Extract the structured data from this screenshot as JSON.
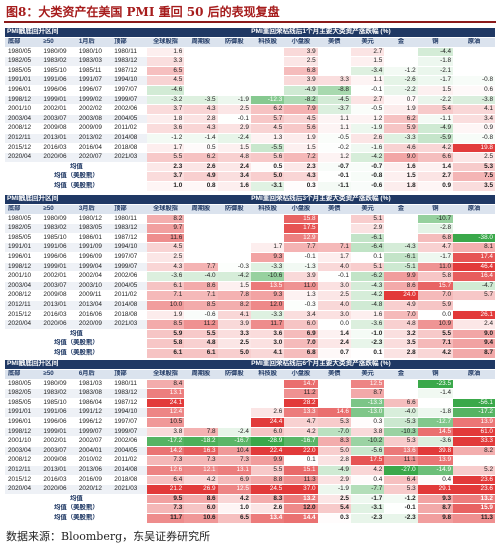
{
  "title": "图8：大类资产在美国 PMI 重回 50 后的表现复盘",
  "source": "数据来源：Bloomberg，东吴证券研究所",
  "columns": [
    "全球股指",
    "周期股",
    "防御股",
    "科技股",
    "小盘股",
    "美债",
    "美元",
    "金",
    "铜",
    "原油"
  ],
  "colors": {
    "pos": "#e23a3a",
    "neg": "#3aa84a",
    "header": "#1f3864"
  },
  "sections": [
    {
      "header_left": "PMI触底回升区间",
      "header_right": "PMI重回荣枯线后1个月主要大类资产涨跌幅 (%)",
      "sub": [
        "底部",
        "≥50",
        "1月后",
        "顶部"
      ],
      "rows": [
        {
          "d": [
            "1980/05",
            "1980/09",
            "1980/10",
            "1980/11"
          ],
          "v": [
            "1.6",
            "",
            "",
            "",
            "3.9",
            "",
            "2.7",
            "",
            "-4.4",
            ""
          ]
        },
        {
          "d": [
            "1982/05",
            "1983/02",
            "1983/03",
            "1983/12"
          ],
          "v": [
            "3.3",
            "",
            "",
            "",
            "2.5",
            "",
            "1.5",
            "",
            "-1.8",
            ""
          ]
        },
        {
          "d": [
            "1985/05",
            "1985/10",
            "1985/11",
            "1987/12"
          ],
          "v": [
            "6.5",
            "",
            "",
            "",
            "6.8",
            "",
            "-3.4",
            "-1.2",
            "-2.1",
            ""
          ]
        },
        {
          "d": [
            "1991/01",
            "1991/06",
            "1991/07",
            "1994/10"
          ],
          "v": [
            "4.5",
            "",
            "",
            "",
            "3.9",
            "3.3",
            "1.1",
            "-2.6",
            "-1.7",
            "-0.8"
          ]
        },
        {
          "d": [
            "1996/01",
            "1996/06",
            "1996/07",
            "1997/07"
          ],
          "v": [
            "-4.6",
            "",
            "",
            "",
            "-4.9",
            "-8.8",
            "-0.1",
            "-2.2",
            "1.5",
            "0.6"
          ]
        },
        {
          "d": [
            "1998/12",
            "1999/01",
            "1999/02",
            "1999/07"
          ],
          "v": [
            "-3.2",
            "-3.5",
            "-1.9",
            "-12.3",
            "-8.2",
            "-4.5",
            "2.7",
            "0.7",
            "-2.2",
            "-3.8"
          ]
        },
        {
          "d": [
            "2001/10",
            "2002/01",
            "2002/02",
            "2002/06"
          ],
          "v": [
            "3.7",
            "4.3",
            "2.5",
            "6.2",
            "7.9",
            "-3.7",
            "-0.5",
            "1.9",
            "5.4",
            "4.1"
          ]
        },
        {
          "d": [
            "2003/04",
            "2003/07",
            "2003/08",
            "2004/05"
          ],
          "v": [
            "1.8",
            "2.8",
            "-0.1",
            "5.7",
            "4.5",
            "1.1",
            "1.2",
            "6.2",
            "-1.1",
            "3.4"
          ]
        },
        {
          "d": [
            "2008/12",
            "2009/08",
            "2009/09",
            "2011/02"
          ],
          "v": [
            "3.6",
            "4.3",
            "2.9",
            "4.5",
            "5.6",
            "1.1",
            "-1.9",
            "5.9",
            "-4.9",
            "0.9"
          ]
        },
        {
          "d": [
            "2012/11",
            "2013/01",
            "2013/02",
            "2014/08"
          ],
          "v": [
            "-1.2",
            "-1.4",
            "-2.4",
            "1.3",
            "1.9",
            "-0.5",
            "2.6",
            "-3.3",
            "-5.9",
            "-0.8"
          ]
        },
        {
          "d": [
            "2015/12",
            "2016/03",
            "2016/04",
            "2018/08"
          ],
          "v": [
            "1.7",
            "0.5",
            "1.5",
            "-5.5",
            "1.5",
            "-0.2",
            "-1.6",
            "4.6",
            "4.2",
            "19.8"
          ]
        },
        {
          "d": [
            "2020/04",
            "2020/06",
            "2020/07",
            "2021/03"
          ],
          "v": [
            "5.5",
            "6.2",
            "4.8",
            "5.6",
            "7.2",
            "1.2",
            "-4.2",
            "9.0",
            "6.6",
            "2.5"
          ]
        }
      ],
      "avgs": [
        {
          "label": "均值",
          "v": [
            "2.3",
            "2.6",
            "2.4",
            "0.5",
            "2.3",
            "-0.7",
            "-0.7",
            "1.6",
            "1.4",
            "5.3"
          ]
        },
        {
          "label": "均值（美股熊）",
          "v": [
            "3.7",
            "4.9",
            "3.4",
            "5.0",
            "4.3",
            "-0.1",
            "-0.8",
            "1.5",
            "2.7",
            "7.5"
          ]
        },
        {
          "label": "均值（美股熊）",
          "v": [
            "1.0",
            "0.8",
            "1.6",
            "-3.1",
            "0.3",
            "-1.1",
            "-0.6",
            "1.8",
            "0.9",
            "3.5"
          ]
        }
      ]
    },
    {
      "header_left": "PMI触底回升区间",
      "header_right": "PMI重回荣枯线后3个月主要大类资产涨跌幅 (%)",
      "sub": [
        "底部",
        "≥50",
        "3月后",
        "顶部"
      ],
      "rows": [
        {
          "d": [
            "1980/05",
            "1980/09",
            "1980/12",
            "1980/11"
          ],
          "v": [
            "8.2",
            "",
            "",
            "",
            "15.8",
            "",
            "5.1",
            "",
            "-10.7",
            ""
          ]
        },
        {
          "d": [
            "1982/05",
            "1983/02",
            "1983/05",
            "1983/12"
          ],
          "v": [
            "9.7",
            "",
            "",
            "",
            "17.5",
            "",
            "2.9",
            "",
            "-2.8",
            ""
          ]
        },
        {
          "d": [
            "1985/05",
            "1985/10",
            "1986/01",
            "1987/12"
          ],
          "v": [
            "11.6",
            "",
            "",
            "",
            "12.9",
            "",
            "-6.1",
            "",
            "6.8",
            "-38.0"
          ]
        },
        {
          "d": [
            "1991/01",
            "1991/06",
            "1991/09",
            "1994/10"
          ],
          "v": [
            "4.5",
            "",
            "",
            "1.7",
            "7.7",
            "7.1",
            "-6.4",
            "-4.3",
            "4.7",
            "8.1"
          ]
        },
        {
          "d": [
            "1996/01",
            "1996/06",
            "1996/09",
            "1997/07"
          ],
          "v": [
            "2.5",
            "",
            "",
            "9.3",
            "-0.1",
            "1.7",
            "0.1",
            "-6.1",
            "-1.7",
            "17.4"
          ]
        },
        {
          "d": [
            "1998/12",
            "1999/01",
            "1999/04",
            "1999/07"
          ],
          "v": [
            "4.3",
            "7.7",
            "-0.3",
            "-3.3",
            "-1.3",
            "4.0",
            "5.1",
            "-5.1",
            "11.0",
            "46.4"
          ]
        },
        {
          "d": [
            "2001/10",
            "2002/01",
            "2002/04",
            "2002/06"
          ],
          "v": [
            "-3.6",
            "-4.0",
            "-4.2",
            "-10.6",
            "3.9",
            "-0.1",
            "-6.2",
            "9.9",
            "5.8",
            "16.4"
          ]
        },
        {
          "d": [
            "2003/04",
            "2003/07",
            "2003/10",
            "2004/05"
          ],
          "v": [
            "6.1",
            "8.6",
            "1.5",
            "13.5",
            "11.0",
            "3.0",
            "-4.3",
            "8.6",
            "15.7",
            "-4.7"
          ]
        },
        {
          "d": [
            "2008/12",
            "2009/08",
            "2009/11",
            "2011/02"
          ],
          "v": [
            "7.1",
            "7.1",
            "7.8",
            "9.3",
            "1.3",
            "2.5",
            "-4.2",
            "24.0",
            "7.0",
            "5.7"
          ]
        },
        {
          "d": [
            "2012/11",
            "2013/01",
            "2013/04",
            "2014/08"
          ],
          "v": [
            "10.0",
            "8.5",
            "8.2",
            "12.0",
            "-0.3",
            "4.0",
            "-4.8",
            "4.9",
            "5.9",
            ""
          ]
        },
        {
          "d": [
            "2015/12",
            "2016/03",
            "2016/06",
            "2018/08"
          ],
          "v": [
            "1.9",
            "-0.6",
            "4.1",
            "-3.3",
            "3.4",
            "3.0",
            "1.6",
            "7.0",
            "0.0",
            "26.1"
          ]
        },
        {
          "d": [
            "2020/04",
            "2020/06",
            "2020/09",
            "2021/03"
          ],
          "v": [
            "8.5",
            "11.2",
            "3.9",
            "11.7",
            "6.0",
            "0.0",
            "-3.6",
            "4.8",
            "10.9",
            "2.4"
          ]
        }
      ],
      "avgs": [
        {
          "label": "均值",
          "v": [
            "5.9",
            "5.5",
            "3.3",
            "3.6",
            "6.9",
            "1.4",
            "-1.0",
            "3.2",
            "5.5",
            "9.0"
          ]
        },
        {
          "label": "均值（美股熊）",
          "v": [
            "5.8",
            "4.8",
            "2.5",
            "3.0",
            "7.0",
            "2.4",
            "-2.3",
            "3.5",
            "7.1",
            "9.4"
          ]
        },
        {
          "label": "均值（美股熊）",
          "v": [
            "6.1",
            "6.1",
            "5.0",
            "4.1",
            "6.8",
            "0.7",
            "0.1",
            "2.8",
            "4.2",
            "8.7"
          ]
        }
      ]
    },
    {
      "header_left": "PMI触底回升区间",
      "header_right": "PMI重回荣枯线后6个月主要大类资产涨跌幅 (%)",
      "sub": [
        "底部",
        "≥50",
        "6月后",
        "顶部"
      ],
      "rows": [
        {
          "d": [
            "1980/05",
            "1980/09",
            "1981/03",
            "1980/11"
          ],
          "v": [
            "8.4",
            "",
            "",
            "",
            "14.7",
            "",
            "12.5",
            "",
            "-23.5",
            ""
          ]
        },
        {
          "d": [
            "1982/05",
            "1983/02",
            "1983/08",
            "1983/12"
          ],
          "v": [
            "13.1",
            "",
            "",
            "",
            "11.2",
            "",
            "8.7",
            "",
            "-1.4",
            ""
          ]
        },
        {
          "d": [
            "1985/05",
            "1985/10",
            "1986/04",
            "1987/12"
          ],
          "v": [
            "24.1",
            "",
            "",
            "",
            "28.2",
            "",
            "-13.3",
            "6.6",
            "",
            "-56.1"
          ]
        },
        {
          "d": [
            "1991/01",
            "1991/06",
            "1991/12",
            "1994/10"
          ],
          "v": [
            "12.4",
            "",
            "",
            "2.6",
            "13.3",
            "14.6",
            "-13.0",
            "-4.0",
            "-1.8",
            "-17.2"
          ]
        },
        {
          "d": [
            "1996/01",
            "1996/06",
            "1996/12",
            "1997/07"
          ],
          "v": [
            "10.5",
            "",
            "",
            "24.4",
            "4.7",
            "5.3",
            "0.3",
            "-5.3",
            "-12.7",
            "13.9"
          ]
        },
        {
          "d": [
            "1998/12",
            "1999/01",
            "1999/07",
            "1999/07"
          ],
          "v": [
            "3.8",
            "7.8",
            "-2.4",
            "6.0",
            "4.2",
            "-7.0",
            "3.8",
            "-10.3",
            "14.5",
            "61.0"
          ]
        },
        {
          "d": [
            "2001/10",
            "2002/01",
            "2002/07",
            "2002/06"
          ],
          "v": [
            "-17.2",
            "-18.2",
            "-16.7",
            "-28.9",
            "-16.7",
            "8.3",
            "-10.2",
            "5.3",
            "-3.6",
            "33.3"
          ]
        },
        {
          "d": [
            "2003/04",
            "2003/07",
            "2004/01",
            "2004/05"
          ],
          "v": [
            "14.2",
            "16.3",
            "10.4",
            "22.4",
            "22.0",
            "5.0",
            "-5.6",
            "13.6",
            "39.8",
            "8.2"
          ]
        },
        {
          "d": [
            "2008/12",
            "2009/08",
            "2010/02",
            "2011/02"
          ],
          "v": [
            "7.3",
            "7.3",
            "7.3",
            "9.9",
            "0.1",
            "2.8",
            "17.5",
            "11.1",
            "13.9",
            ""
          ]
        },
        {
          "d": [
            "2012/11",
            "2013/01",
            "2013/06",
            "2014/08"
          ],
          "v": [
            "12.6",
            "12.1",
            "13.1",
            "5.5",
            "15.1",
            "-4.9",
            "4.2",
            "-27.0",
            "-14.9",
            "5.2"
          ]
        },
        {
          "d": [
            "2015/12",
            "2016/03",
            "2016/09",
            "2018/08"
          ],
          "v": [
            "6.4",
            "4.2",
            "6.9",
            "8.8",
            "11.3",
            "2.9",
            "0.4",
            "6.4",
            "0.4",
            "23.6"
          ]
        },
        {
          "d": [
            "2020/04",
            "2020/06",
            "2020/12",
            "2021/03"
          ],
          "v": [
            "21.2",
            "26.9",
            "12.5",
            "24.5",
            "37.0",
            "-1.9",
            "-7.7",
            "5.3",
            "29.1",
            "23.6"
          ]
        }
      ],
      "avgs": [
        {
          "label": "均值",
          "v": [
            "9.5",
            "8.6",
            "4.2",
            "8.3",
            "13.2",
            "2.5",
            "-1.7",
            "-1.2",
            "9.3",
            "13.2"
          ]
        },
        {
          "label": "均值（美股熊）",
          "v": [
            "7.3",
            "6.0",
            "1.0",
            "2.6",
            "12.0",
            "5.4",
            "-3.1",
            "-0.1",
            "8.7",
            "15.9"
          ]
        },
        {
          "label": "均值（美股熊）",
          "v": [
            "11.7",
            "10.6",
            "6.5",
            "13.4",
            "14.4",
            "0.3",
            "-2.3",
            "-2.3",
            "9.8",
            "11.3"
          ]
        }
      ]
    }
  ]
}
